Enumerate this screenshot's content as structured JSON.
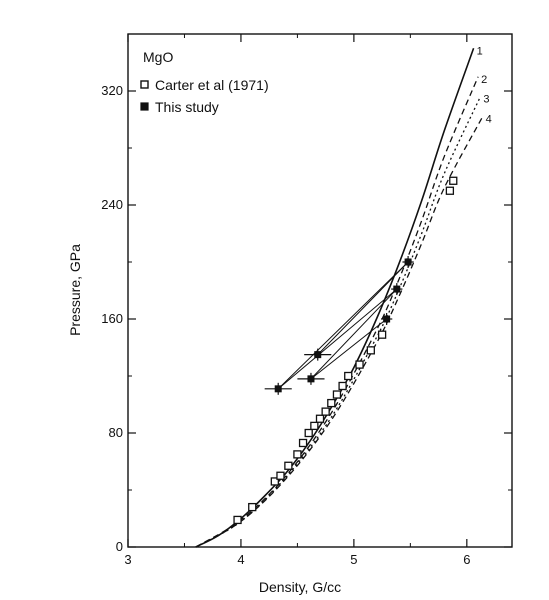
{
  "chart_data": {
    "type": "scatter",
    "xlabel": "Density, G/cc",
    "ylabel": "Pressure, GPa",
    "xlim": [
      3,
      6.4
    ],
    "ylim": [
      0,
      360
    ],
    "x_ticks": [
      3,
      4,
      5,
      6
    ],
    "y_ticks": [
      0,
      80,
      160,
      240,
      320
    ],
    "grid": false,
    "legend": {
      "title": "MgO",
      "position": "top-left",
      "entries": [
        {
          "marker": "open-square",
          "label": "Carter et al (1971)"
        },
        {
          "marker": "filled-square",
          "label": "This study"
        }
      ]
    },
    "curves": [
      {
        "label": "1",
        "style": "solid",
        "points": [
          [
            3.6,
            0
          ],
          [
            3.8,
            8
          ],
          [
            4.0,
            20
          ],
          [
            4.2,
            35
          ],
          [
            4.4,
            52
          ],
          [
            4.6,
            73
          ],
          [
            4.8,
            98
          ],
          [
            5.0,
            126
          ],
          [
            5.2,
            160
          ],
          [
            5.4,
            199
          ],
          [
            5.6,
            243
          ],
          [
            5.8,
            292
          ],
          [
            6.06,
            350
          ]
        ]
      },
      {
        "label": "2",
        "style": "dashed",
        "points": [
          [
            3.6,
            0
          ],
          [
            4.0,
            19
          ],
          [
            4.4,
            50
          ],
          [
            4.8,
            94
          ],
          [
            5.2,
            152
          ],
          [
            5.4,
            188
          ],
          [
            5.6,
            229
          ],
          [
            5.8,
            274
          ],
          [
            6.1,
            330
          ]
        ]
      },
      {
        "label": "3",
        "style": "dotted",
        "points": [
          [
            3.6,
            0
          ],
          [
            4.0,
            18
          ],
          [
            4.4,
            49
          ],
          [
            4.8,
            91
          ],
          [
            5.2,
            147
          ],
          [
            5.4,
            181
          ],
          [
            5.6,
            220
          ],
          [
            5.8,
            262
          ],
          [
            6.12,
            316
          ]
        ]
      },
      {
        "label": "4",
        "style": "dashed",
        "points": [
          [
            3.6,
            0
          ],
          [
            4.0,
            18
          ],
          [
            4.4,
            48
          ],
          [
            4.8,
            89
          ],
          [
            5.2,
            143
          ],
          [
            5.4,
            176
          ],
          [
            5.6,
            213
          ],
          [
            5.8,
            252
          ],
          [
            6.14,
            302
          ]
        ]
      }
    ],
    "series": [
      {
        "name": "Carter et al (1971)",
        "marker": "open-square",
        "points": [
          [
            3.97,
            19
          ],
          [
            4.1,
            28
          ],
          [
            4.3,
            46
          ],
          [
            4.35,
            50
          ],
          [
            4.42,
            57
          ],
          [
            4.5,
            65
          ],
          [
            4.55,
            73
          ],
          [
            4.6,
            80
          ],
          [
            4.65,
            85
          ],
          [
            4.7,
            90
          ],
          [
            4.75,
            95
          ],
          [
            4.8,
            101
          ],
          [
            4.85,
            107
          ],
          [
            4.9,
            113
          ],
          [
            4.95,
            120
          ],
          [
            5.05,
            128
          ],
          [
            5.15,
            138
          ],
          [
            5.25,
            149
          ],
          [
            5.85,
            250
          ],
          [
            5.88,
            257
          ]
        ]
      },
      {
        "name": "This study",
        "marker": "filled-square",
        "points": [
          {
            "x": 4.33,
            "y": 111,
            "xerr": 0.12
          },
          {
            "x": 4.62,
            "y": 118,
            "xerr": 0.12
          },
          {
            "x": 4.68,
            "y": 135,
            "xerr": 0.12
          },
          {
            "x": 5.29,
            "y": 160,
            "xerr": 0.05
          },
          {
            "x": 5.38,
            "y": 181,
            "xerr": 0.05
          },
          {
            "x": 5.48,
            "y": 200,
            "xerr": 0.05
          }
        ]
      }
    ],
    "connector_lines": [
      [
        [
          4.33,
          111
        ],
        [
          5.48,
          200
        ]
      ],
      [
        [
          4.33,
          111
        ],
        [
          5.38,
          181
        ]
      ],
      [
        [
          4.62,
          118
        ],
        [
          5.29,
          160
        ]
      ],
      [
        [
          4.68,
          135
        ],
        [
          5.48,
          200
        ]
      ],
      [
        [
          4.62,
          118
        ],
        [
          5.38,
          181
        ]
      ]
    ]
  }
}
